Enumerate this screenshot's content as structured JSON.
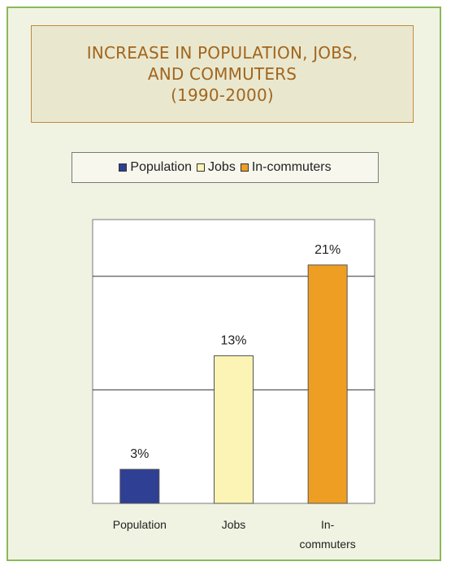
{
  "title_lines": [
    "INCREASE IN POPULATION, JOBS,",
    "AND COMMUTERS",
    "(1990-2000)"
  ],
  "colors": {
    "frame_border": "#8ab95a",
    "panel_background": "#f0f3e2",
    "title_text": "#a2651d"
  },
  "legend": {
    "placement": "top",
    "items": [
      {
        "label": "Population",
        "color": "#2e3f94"
      },
      {
        "label": "Jobs",
        "color": "#fbf4b4"
      },
      {
        "label": "In-commuters",
        "color": "#ee9e22"
      }
    ]
  },
  "chart_data": {
    "type": "bar",
    "categories": [
      "Population",
      "Jobs",
      "In-commuters"
    ],
    "category_label_lines": [
      [
        "Population"
      ],
      [
        "Jobs"
      ],
      [
        "In-",
        "commuters"
      ]
    ],
    "values": [
      3,
      13,
      21
    ],
    "data_labels": [
      "3%",
      "13%",
      "21%"
    ],
    "colors": [
      "#2e3f94",
      "#fbf4b4",
      "#ee9e22"
    ],
    "ylim": [
      0,
      25
    ],
    "gridlines": [
      10,
      20
    ],
    "grid": true,
    "title": "",
    "xlabel": "",
    "ylabel": ""
  }
}
